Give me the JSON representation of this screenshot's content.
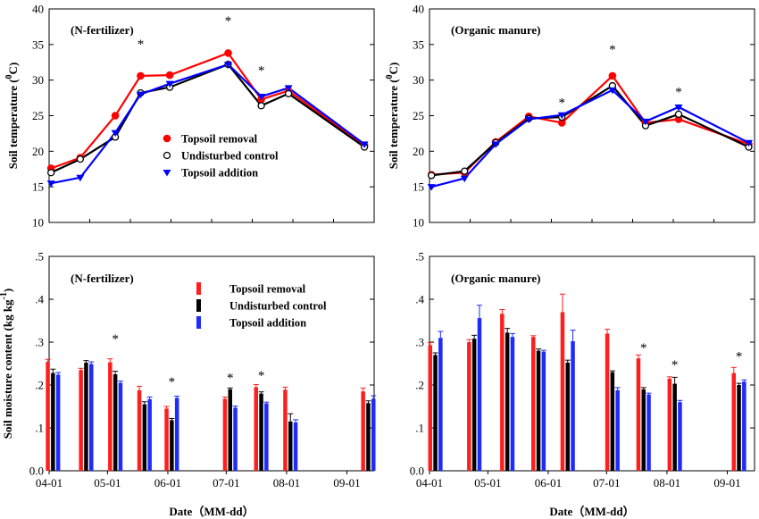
{
  "chart_data": [
    {
      "id": "temp-n",
      "type": "line",
      "panel_label": "(N-fertilizer)",
      "xlabel": "",
      "ylabel": "Soil temperature (°C)",
      "ylabel_main": "Soil temperature (",
      "ylabel_unit": "C)",
      "ylabel_sup": "0",
      "xlim": [
        "04-01",
        "09-15"
      ],
      "ylim": [
        10,
        40
      ],
      "yticks": [
        10,
        15,
        20,
        25,
        30,
        35,
        40
      ],
      "legend_position": "lower-center",
      "series": [
        {
          "name": "Topsoil removal",
          "color": "#ff0000",
          "marker": "circle-filled",
          "x": [
            "04-02",
            "04-17",
            "05-05",
            "05-18",
            "06-02",
            "06-14",
            "07-02",
            "07-19",
            "08-02",
            "09-10"
          ],
          "y": [
            17.6,
            19.1,
            25.0,
            30.6,
            30.7,
            null,
            33.8,
            27.3,
            28.5,
            20.8
          ]
        },
        {
          "name": "Undisturbed control",
          "color": "#000000",
          "marker": "circle-open",
          "x": [
            "04-02",
            "04-17",
            "05-05",
            "05-18",
            "06-02",
            "06-14",
            "07-02",
            "07-19",
            "08-02",
            "09-10"
          ],
          "y": [
            17.0,
            18.9,
            22.0,
            28.2,
            29.0,
            null,
            32.2,
            26.4,
            28.1,
            20.6
          ]
        },
        {
          "name": "Topsoil addition",
          "color": "#0000ff",
          "marker": "triangle-down",
          "x": [
            "04-02",
            "04-17",
            "05-05",
            "05-18",
            "06-02",
            "06-14",
            "07-02",
            "07-19",
            "08-02",
            "09-10"
          ],
          "y": [
            15.5,
            16.3,
            22.6,
            28.0,
            29.5,
            null,
            32.2,
            27.7,
            28.9,
            21.0
          ]
        }
      ],
      "annotations": [
        {
          "text": "*",
          "x": "05-18",
          "y": 35.2
        },
        {
          "text": "*",
          "x": "07-02",
          "y": 38.5
        },
        {
          "text": "*",
          "x": "07-19",
          "y": 31.5
        }
      ]
    },
    {
      "id": "temp-o",
      "type": "line",
      "panel_label": "(Organic manure)",
      "xlabel": "",
      "ylabel": "Soil temperature (°C)",
      "ylabel_main": "Soil temperature (",
      "ylabel_unit": "C)",
      "ylabel_sup": "0",
      "xlim": [
        "04-01",
        "09-15"
      ],
      "ylim": [
        10,
        40
      ],
      "yticks": [
        10,
        15,
        20,
        25,
        30,
        35,
        40
      ],
      "series": [
        {
          "name": "Topsoil removal",
          "color": "#ff0000",
          "marker": "circle-filled",
          "x": [
            "04-02",
            "04-19",
            "05-05",
            "05-22",
            "06-08",
            "07-04",
            "07-21",
            "08-07",
            "09-12"
          ],
          "y": [
            16.7,
            17.0,
            21.3,
            24.9,
            24.0,
            30.6,
            24.0,
            24.5,
            21.0
          ]
        },
        {
          "name": "Undisturbed control",
          "color": "#000000",
          "marker": "circle-open",
          "x": [
            "04-02",
            "04-19",
            "05-05",
            "05-22",
            "06-08",
            "07-04",
            "07-21",
            "08-07",
            "09-12"
          ],
          "y": [
            16.6,
            17.2,
            21.2,
            24.6,
            24.8,
            29.2,
            23.6,
            25.2,
            20.6
          ]
        },
        {
          "name": "Topsoil addition",
          "color": "#0000ff",
          "marker": "triangle-down",
          "x": [
            "04-02",
            "04-19",
            "05-05",
            "05-22",
            "06-08",
            "07-04",
            "07-21",
            "08-07",
            "09-12"
          ],
          "y": [
            15.0,
            16.2,
            21.0,
            24.5,
            25.1,
            28.6,
            24.2,
            26.2,
            21.2
          ]
        }
      ],
      "annotations": [
        {
          "text": "*",
          "x": "06-08",
          "y": 27.0
        },
        {
          "text": "*",
          "x": "07-04",
          "y": 34.5
        },
        {
          "text": "*",
          "x": "08-07",
          "y": 28.5
        }
      ]
    },
    {
      "id": "moist-n",
      "type": "bar",
      "panel_label": "(N-fertilizer)",
      "xlabel": "Date（MM-dd）",
      "ylabel": "Soil moisture content (kg kg⁻¹)",
      "ylabel_main": "Soil moisture content (kg kg",
      "ylabel_sup": "-1",
      "ylabel_close": ")",
      "xlim": [
        "04-01",
        "09-15"
      ],
      "ylim": [
        0,
        0.5
      ],
      "yticks": [
        0.0,
        0.1,
        0.2,
        0.3,
        0.4,
        0.5
      ],
      "ytick_labels": [
        "0.0",
        ".1",
        ".2",
        ".3",
        ".4",
        ".5"
      ],
      "xticks": [
        "04-01",
        "05-01",
        "06-01",
        "07-01",
        "08-01",
        "09-01"
      ],
      "legend_position": "top-center",
      "groups": [
        "04-03",
        "04-20",
        "05-05",
        "05-20",
        "06-03",
        "07-03",
        "07-19",
        "08-03",
        "09-12"
      ],
      "series": [
        {
          "name": "Topsoil removal",
          "color": "#ff1e1e",
          "values": [
            0.254,
            0.235,
            0.253,
            0.188,
            0.145,
            0.168,
            0.195,
            0.189,
            0.185
          ],
          "errors": [
            0.006,
            0.004,
            0.008,
            0.009,
            0.005,
            0.004,
            0.006,
            0.006,
            0.008
          ]
        },
        {
          "name": "Undisturbed control",
          "color": "#000000",
          "values": [
            0.228,
            0.252,
            0.225,
            0.155,
            0.118,
            0.19,
            0.18,
            0.115,
            0.158
          ],
          "errors": [
            0.009,
            0.005,
            0.007,
            0.006,
            0.004,
            0.003,
            0.004,
            0.018,
            0.005
          ]
        },
        {
          "name": "Topsoil addition",
          "color": "#1e2aff",
          "values": [
            0.224,
            0.249,
            0.205,
            0.167,
            0.17,
            0.147,
            0.157,
            0.113,
            0.168
          ],
          "errors": [
            0.005,
            0.005,
            0.004,
            0.005,
            0.004,
            0.004,
            0.003,
            0.006,
            0.007
          ]
        }
      ],
      "annotations": [
        {
          "text": "*",
          "group": 2,
          "y": 0.31
        },
        {
          "text": "*",
          "group": 4,
          "y": 0.21
        },
        {
          "text": "*",
          "group": 5,
          "y": 0.22
        },
        {
          "text": "*",
          "group": 6,
          "y": 0.225
        }
      ]
    },
    {
      "id": "moist-o",
      "type": "bar",
      "panel_label": "(Organic manure)",
      "xlabel": "Date（MM-dd）",
      "ylabel": "",
      "xlim": [
        "04-01",
        "09-15"
      ],
      "ylim": [
        0,
        0.5
      ],
      "yticks": [
        0.0,
        0.1,
        0.2,
        0.3,
        0.4,
        0.5
      ],
      "ytick_labels": [
        "0.0",
        ".1",
        ".2",
        ".3",
        ".4",
        ".5"
      ],
      "xticks": [
        "04-01",
        "05-01",
        "06-01",
        "07-01",
        "08-01",
        "09-01"
      ],
      "groups": [
        "04-04",
        "04-24",
        "05-11",
        "05-27",
        "06-11",
        "07-04",
        "07-20",
        "08-05",
        "09-07"
      ],
      "series": [
        {
          "name": "Topsoil removal",
          "color": "#ff1e1e",
          "values": [
            0.293,
            0.3,
            0.366,
            0.312,
            0.37,
            0.32,
            0.262,
            0.215,
            0.228
          ],
          "errors": [
            0.006,
            0.006,
            0.01,
            0.003,
            0.042,
            0.01,
            0.008,
            0.004,
            0.013
          ]
        },
        {
          "name": "Undisturbed control",
          "color": "#000000",
          "values": [
            0.27,
            0.308,
            0.322,
            0.28,
            0.252,
            0.23,
            0.19,
            0.203,
            0.2
          ],
          "errors": [
            0.005,
            0.008,
            0.01,
            0.004,
            0.006,
            0.003,
            0.004,
            0.015,
            0.004
          ]
        },
        {
          "name": "Topsoil addition",
          "color": "#1e2aff",
          "values": [
            0.31,
            0.356,
            0.312,
            0.278,
            0.302,
            0.188,
            0.178,
            0.16,
            0.208
          ],
          "errors": [
            0.015,
            0.03,
            0.008,
            0.003,
            0.026,
            0.006,
            0.003,
            0.004,
            0.004
          ]
        }
      ],
      "annotations": [
        {
          "text": "*",
          "group": 6,
          "y": 0.29
        },
        {
          "text": "*",
          "group": 7,
          "y": 0.25
        },
        {
          "text": "*",
          "group": 8,
          "y": 0.27
        }
      ]
    }
  ]
}
